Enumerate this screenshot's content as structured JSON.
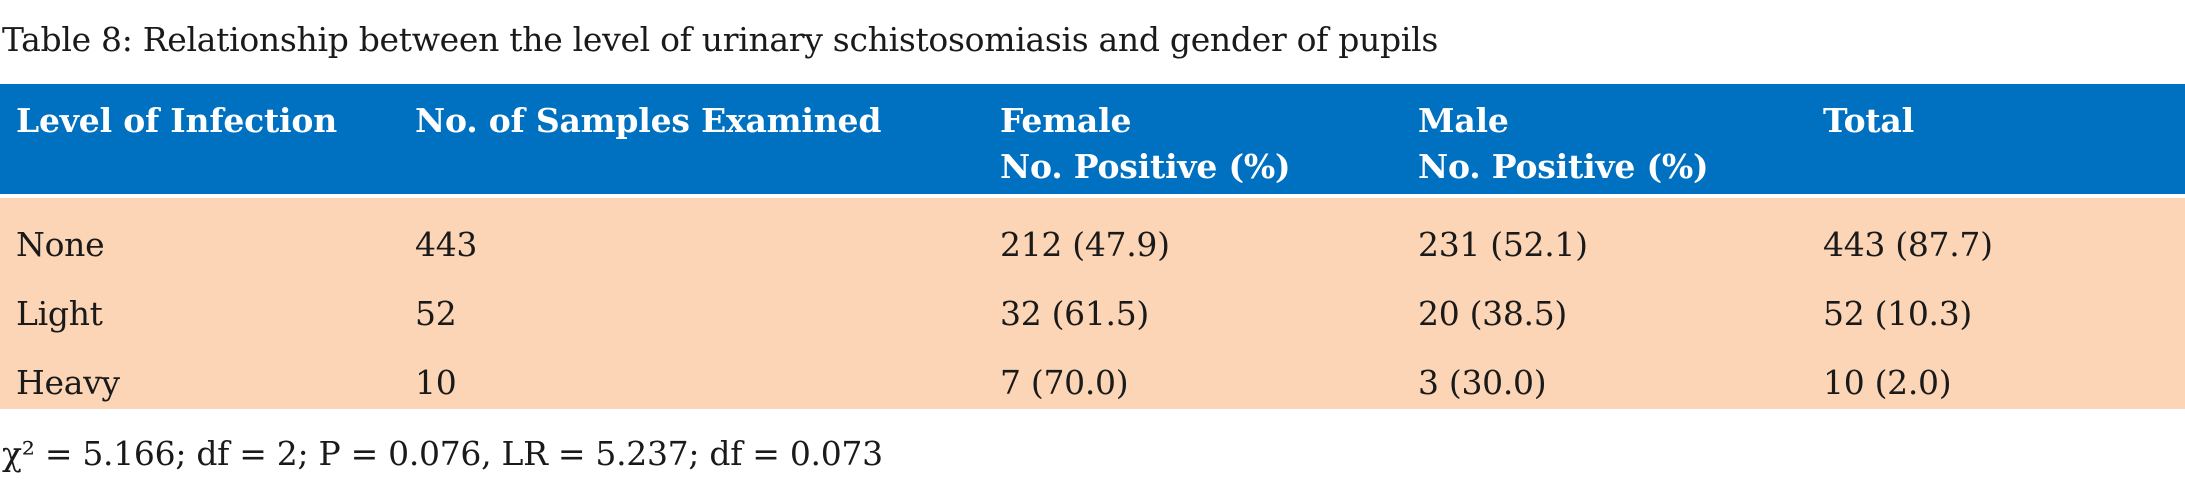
{
  "caption": "Table 8: Relationship between the level of urinary schistosomiasis and gender of pupils",
  "table": {
    "headers": [
      {
        "line1": "Level of Infection",
        "line2": ""
      },
      {
        "line1": "No. of Samples Examined",
        "line2": ""
      },
      {
        "line1": "Female",
        "line2": "No. Positive (%)"
      },
      {
        "line1": "Male",
        "line2": "No. Positive (%)"
      },
      {
        "line1": "Total",
        "line2": ""
      }
    ],
    "rows": [
      {
        "level": "None",
        "samples": "443",
        "female": "212 (47.9)",
        "male": "231 (52.1)",
        "total": "443 (87.7)"
      },
      {
        "level": "Light",
        "samples": "52",
        "female": "32 (61.5)",
        "male": "20 (38.5)",
        "total": "52 (10.3)"
      },
      {
        "level": "Heavy",
        "samples": "10",
        "female": "7 (70.0)",
        "male": "3 (30.0)",
        "total": "10 (2.0)"
      }
    ],
    "colors": {
      "header_bg": "#0070c0",
      "body_bg": "#fbd5b5"
    }
  },
  "footnote": "χ² = 5.166; df = 2; P = 0.076, LR = 5.237; df = 0.073"
}
